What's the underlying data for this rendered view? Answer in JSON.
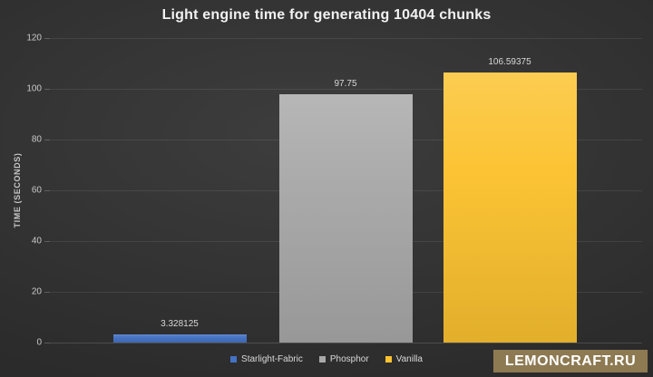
{
  "chart_data": {
    "type": "bar",
    "title": "Light engine time for generating 10404 chunks",
    "xlabel": "",
    "ylabel": "TIME (SECONDS)",
    "categories": [
      "Starlight-Fabric",
      "Phosphor",
      "Vanilla"
    ],
    "series": [
      {
        "name": "Starlight-Fabric",
        "value": 3.328125,
        "value_label": "3.328125",
        "color": "#4472c4"
      },
      {
        "name": "Phosphor",
        "value": 97.75,
        "value_label": "97.75",
        "color": "#a9a9a9"
      },
      {
        "name": "Vanilla",
        "value": 106.59375,
        "value_label": "106.59375",
        "color": "#fcc331"
      }
    ],
    "ylim": [
      0,
      120
    ],
    "yticks": [
      0,
      20,
      40,
      60,
      80,
      100,
      120
    ],
    "grid": true,
    "legend_position": "bottom",
    "colors": {
      "background_center": "#3d3d3d",
      "background_edge": "#2b2b2b",
      "title_text": "#f2f2f2",
      "axis_text": "#c9c9c9",
      "value_label_text": "#d8d8d8"
    }
  },
  "watermark": {
    "text": "LEMONCRAFT.RU",
    "bg_color": "#8e7a52",
    "text_color": "#ffffff"
  }
}
